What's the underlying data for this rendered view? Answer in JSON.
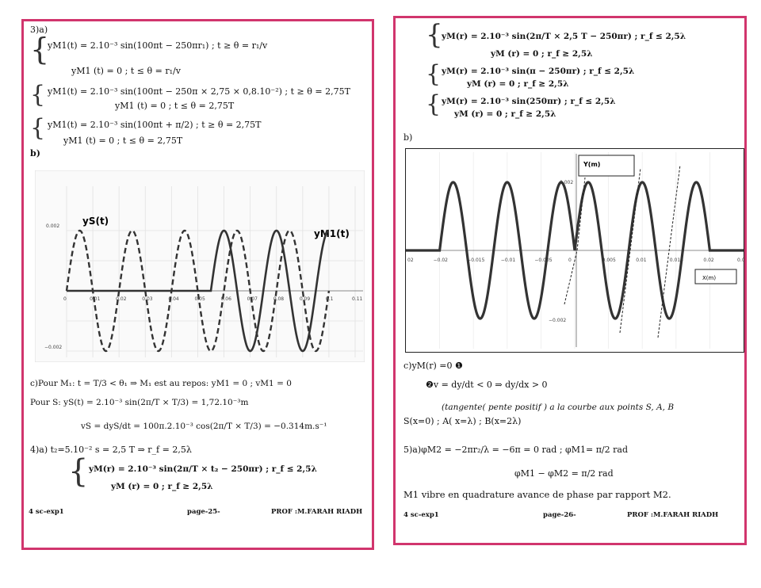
{
  "left": {
    "q3_label": "3)a)",
    "sys1_l1": "yM1(t) = 2.10⁻³ sin(100πt − 250πr₁)     ; t ≥ θ = r₁/v",
    "sys1_l2": "yM1 (t) = 0          ;   t ≤ θ = r₁/v",
    "sys2_l1": "yM1(t) = 2.10⁻³ sin(100πt − 250π × 2,75 × 0,8.10⁻²)    ; t ≥ θ = 2,75T",
    "sys2_l2": "yM1 (t) = 0          ;   t ≤ θ = 2,75T",
    "sys3_l1": "yM1(t) = 2.10⁻³ sin(100πt + π/2)    ; t ≥ θ = 2,75T",
    "sys3_l2": "yM1 (t) = 0          ;   t ≤ θ = 2,75T",
    "b_label": "b)",
    "graph": {
      "ys_label": "yS(t)",
      "ym1_label": "yM1(t)",
      "y_top": "0.002",
      "y_bottom": "−0.002",
      "x_ticks": [
        "0",
        "0.01",
        "0.02",
        "0.03",
        "0.04",
        "0.05",
        "0.06",
        "0.07",
        "0.08",
        "0.09",
        "0.1",
        "0.11"
      ]
    },
    "c_line1": "c)Pour M₁: t = T/3 < θ₁ ⇒ M₁ est au repos: yM1 = 0 ;  vM1 = 0",
    "c_line2": "Pour S: yS(t) = 2.10⁻³ sin(2π/T × T/3) = 1,72.10⁻³m",
    "c_line3": "vS = dyS/dt = 100π.2.10⁻³ cos(2π/T × T/3) = −0.314m.s⁻¹",
    "q4_line": "4)a) t₂=5.10⁻² s = 2,5 T   ⇒    r_f = 2,5λ",
    "q4_sys_l1": "yM(r) = 2.10⁻³ sin(2π/T × t₂ − 250πr)     ;     r_f ≤ 2,5λ",
    "q4_sys_l2": "yM (r) = 0          ;       r_f ≥ 2,5λ",
    "footer_left": "4 sc-exp1",
    "footer_mid": "page-25-",
    "footer_right": "PROF :M.FARAH RIADH"
  },
  "right": {
    "sysA_l1": "yM(r) = 2.10⁻³ sin(2π/T × 2,5 T  − 250πr)    ;     r_f ≤ 2,5λ",
    "sysA_l2": "yM (r) = 0         ;         r_f ≥ 2,5λ",
    "sysB_l1": "yM(r) = 2.10⁻³ sin(π  − 250πr)     ;     r_f ≤ 2,5λ",
    "sysB_l2": "yM (r) = 0         ;       r_f ≥ 2,5λ",
    "sysC_l1": "yM(r) = 2.10⁻³ sin(250πr)    ;     r_f ≤ 2,5λ",
    "sysC_l2": "yM (r) = 0          ;       r_f ≥ 2,5λ",
    "b_label": "b)",
    "graph": {
      "y_axis_label": "Y(m)",
      "x_axis_label": "X(m)",
      "y_top": "0.002",
      "y_bottom": "−0.002",
      "x_ticks": [
        "02",
        "−0.02",
        "−0.015",
        "−0.01",
        "−0.005",
        "0",
        "0.005",
        "0.01",
        "0.015",
        "0.02",
        "0.0"
      ]
    },
    "c_line1": "c)yM(r) =0 ❶",
    "c_line2": "❷v = dy/dt < 0 ⇒ dy/dx > 0",
    "c_line3": "(tangente( pente positif ) a la courbe aux points S, A, B",
    "c_line4": "S(x=0) ; A( x=λ) ; B(x=2λ)",
    "q5_line1": "5)a)φM2 = −2πr₂/λ = −6π = 0 rad ; φM1= π/2 rad",
    "q5_line2": "φM1 − φM2 = π/2 rad",
    "q5_line3": "M1 vibre en quadrature avance de phase par rapport M2.",
    "footer_left": "4 sc-exp1",
    "footer_mid": "page-26-",
    "footer_right": "PROF :M.FARAH RIADH"
  }
}
